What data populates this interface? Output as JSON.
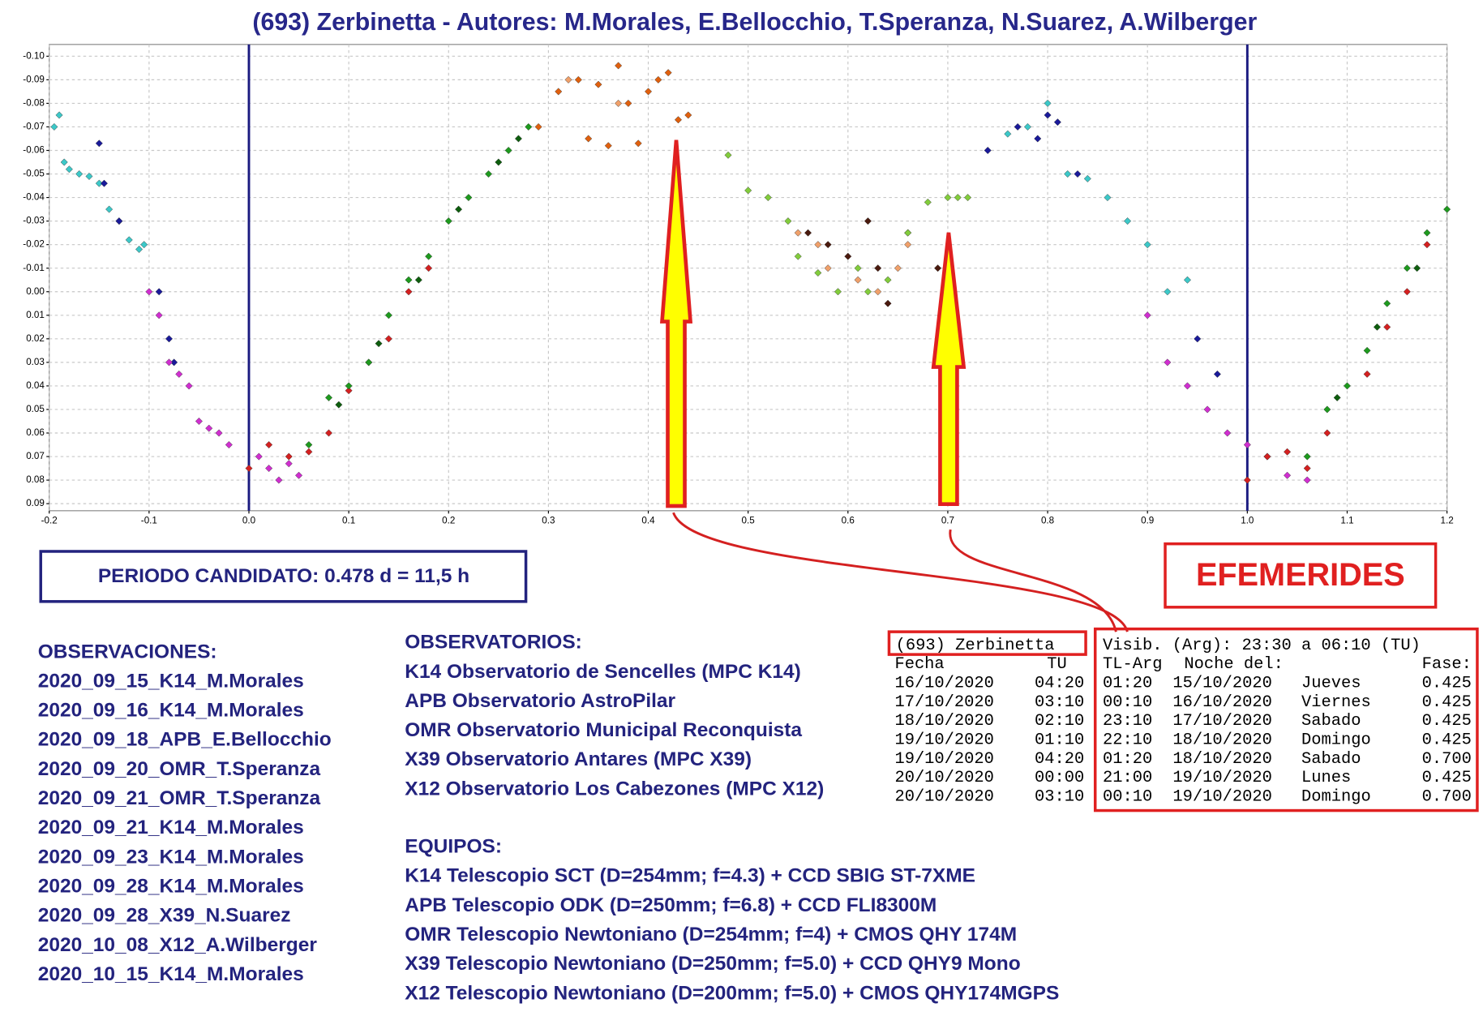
{
  "chart_data": {
    "type": "scatter",
    "title": "(693) Zerbinetta - Autores: M.Morales, E.Bellocchio, T.Speranza, N.Suarez, A.Wilberger",
    "xlim": [
      -0.2,
      1.2
    ],
    "ylim": [
      -0.105,
      0.093
    ],
    "y_inverted": true,
    "grid": true,
    "xticks": [
      -0.2,
      -0.1,
      {
        "value": 0,
        "label": "0.0"
      },
      0.1,
      0.2,
      0.3,
      0.4,
      0.5,
      0.6,
      0.7,
      0.8,
      0.9,
      {
        "value": 1,
        "label": "1.0"
      },
      1.1,
      1.2
    ],
    "yticks": [
      {
        "value": -0.1,
        "label": "-0.10"
      },
      -0.09,
      -0.08,
      -0.07,
      -0.06,
      -0.05,
      -0.04,
      -0.03,
      -0.02,
      -0.01,
      {
        "value": 0,
        "label": "0.00"
      },
      0.01,
      0.02,
      0.03,
      0.04,
      0.05,
      0.06,
      0.07,
      0.08,
      0.09
    ],
    "vlines": {
      "color": "#1a1a80",
      "values": [
        0,
        1
      ]
    },
    "series": [
      {
        "color": "#3cc8c8",
        "x": [
          -0.195,
          -0.19,
          -0.185,
          -0.18,
          -0.17,
          -0.16,
          -0.15,
          -0.14,
          -0.13,
          -0.12,
          -0.11,
          -0.105,
          0.76,
          0.78,
          0.8,
          0.82,
          0.84,
          0.86,
          0.88,
          0.9,
          0.92,
          0.94
        ],
        "values": [
          -0.07,
          -0.075,
          -0.055,
          -0.052,
          -0.05,
          -0.049,
          -0.046,
          -0.035,
          -0.03,
          -0.022,
          -0.018,
          -0.02,
          -0.067,
          -0.07,
          -0.08,
          -0.05,
          -0.048,
          -0.04,
          -0.03,
          -0.02,
          0.0,
          -0.005
        ]
      },
      {
        "color": "#1a1a9a",
        "x": [
          -0.15,
          -0.145,
          -0.13,
          -0.09,
          -0.08,
          -0.075,
          0.74,
          0.77,
          0.79,
          0.8,
          0.81,
          0.83,
          0.95,
          0.97
        ],
        "values": [
          -0.063,
          -0.046,
          -0.03,
          0.0,
          0.02,
          0.03,
          -0.06,
          -0.07,
          -0.065,
          -0.075,
          -0.072,
          -0.05,
          0.02,
          0.035
        ]
      },
      {
        "color": "#d02ed0",
        "x": [
          -0.1,
          -0.09,
          -0.08,
          -0.07,
          -0.06,
          -0.05,
          -0.04,
          -0.03,
          -0.02,
          0.01,
          0.02,
          0.03,
          0.04,
          0.05,
          0.9,
          0.92,
          0.94,
          0.96,
          0.98,
          1.0,
          1.02,
          1.04,
          1.06
        ],
        "values": [
          0.0,
          0.01,
          0.03,
          0.035,
          0.04,
          0.055,
          0.058,
          0.06,
          0.065,
          0.07,
          0.075,
          0.08,
          0.073,
          0.078,
          0.01,
          0.03,
          0.04,
          0.05,
          0.06,
          0.065,
          0.07,
          0.078,
          0.08
        ]
      },
      {
        "color": "#d42020",
        "x": [
          0.0,
          0.02,
          0.04,
          0.06,
          0.08,
          0.1,
          0.12,
          0.14,
          0.16,
          0.18,
          1.0,
          1.02,
          1.04,
          1.06,
          1.08,
          1.12,
          1.14,
          1.16,
          1.18
        ],
        "values": [
          0.075,
          0.065,
          0.07,
          0.068,
          0.06,
          0.042,
          0.03,
          0.02,
          0.0,
          -0.01,
          0.08,
          0.07,
          0.068,
          0.075,
          0.06,
          0.035,
          0.015,
          0.0,
          -0.02
        ]
      },
      {
        "color": "#1e9a1e",
        "x": [
          0.06,
          0.08,
          0.1,
          0.12,
          0.14,
          0.16,
          0.18,
          0.2,
          0.22,
          0.24,
          0.26,
          0.28,
          1.06,
          1.08,
          1.1,
          1.12,
          1.14,
          1.16,
          1.18,
          1.2
        ],
        "values": [
          0.065,
          0.045,
          0.04,
          0.03,
          0.01,
          -0.005,
          -0.015,
          -0.03,
          -0.04,
          -0.05,
          -0.06,
          -0.07,
          0.07,
          0.05,
          0.04,
          0.025,
          0.005,
          -0.01,
          -0.025,
          -0.035
        ]
      },
      {
        "color": "#0e5e0e",
        "x": [
          0.09,
          0.13,
          0.17,
          0.21,
          0.25,
          0.27,
          1.09,
          1.13,
          1.17
        ],
        "values": [
          0.048,
          0.022,
          -0.005,
          -0.035,
          -0.055,
          -0.065,
          0.045,
          0.015,
          -0.01
        ]
      },
      {
        "color": "#e0600e",
        "x": [
          0.29,
          0.31,
          0.33,
          0.35,
          0.37,
          0.38,
          0.4,
          0.41,
          0.42,
          0.43,
          0.44,
          0.34,
          0.36,
          0.39
        ],
        "values": [
          -0.07,
          -0.085,
          -0.09,
          -0.088,
          -0.096,
          -0.08,
          -0.085,
          -0.09,
          -0.093,
          -0.073,
          -0.075,
          -0.065,
          -0.062,
          -0.063
        ]
      },
      {
        "color": "#f0a06a",
        "x": [
          0.32,
          0.37,
          0.55,
          0.57,
          0.58,
          0.61,
          0.63,
          0.65,
          0.66
        ],
        "values": [
          -0.09,
          -0.08,
          -0.025,
          -0.02,
          -0.01,
          -0.005,
          0.0,
          -0.01,
          -0.02
        ]
      },
      {
        "color": "#4a1a0e",
        "x": [
          0.56,
          0.58,
          0.6,
          0.62,
          0.63,
          0.64,
          0.66,
          0.69
        ],
        "values": [
          -0.025,
          -0.02,
          -0.015,
          -0.03,
          -0.01,
          0.005,
          -0.025,
          -0.01
        ]
      },
      {
        "color": "#82cc3c",
        "x": [
          0.48,
          0.5,
          0.52,
          0.54,
          0.55,
          0.57,
          0.59,
          0.61,
          0.62,
          0.64,
          0.66,
          0.68,
          0.7,
          0.71,
          0.72
        ],
        "values": [
          -0.058,
          -0.043,
          -0.04,
          -0.03,
          -0.015,
          -0.008,
          0.0,
          -0.01,
          0.0,
          -0.005,
          -0.025,
          -0.038,
          -0.04,
          -0.04,
          -0.04
        ]
      }
    ]
  },
  "period": "PERIODO CANDIDATO: 0.478 d = 11,5 h",
  "efemerides_label": "EFEMERIDES",
  "observaciones": {
    "title": "OBSERVACIONES:",
    "items": [
      "2020_09_15_K14_M.Morales",
      "2020_09_16_K14_M.Morales",
      "2020_09_18_APB_E.Bellocchio",
      "2020_09_20_OMR_T.Speranza",
      "2020_09_21_OMR_T.Speranza",
      "2020_09_21_K14_M.Morales",
      "2020_09_23_K14_M.Morales",
      "2020_09_28_K14_M.Morales",
      "2020_09_28_X39_N.Suarez",
      "2020_10_08_X12_A.Wilberger",
      "2020_10_15_K14_M.Morales"
    ]
  },
  "observatorios": {
    "title": "OBSERVATORIOS:",
    "items": [
      "K14 Observatorio de Sencelles (MPC K14)",
      "APB Observatorio AstroPilar",
      "OMR Observatorio Municipal Reconquista",
      "X39 Observatorio Antares (MPC X39)",
      "X12 Observatorio Los Cabezones (MPC X12)"
    ]
  },
  "equipos": {
    "title": "EQUIPOS:",
    "items": [
      "K14 Telescopio SCT (D=254mm; f=4.3) + CCD SBIG ST-7XME",
      "APB Telescopio ODK (D=250mm; f=6.8) + CCD FLI8300M",
      "OMR Telescopio Newtoniano (D=254mm; f=4) + CMOS QHY 174M",
      "X39 Telescopio Newtoniano (D=250mm; f=5.0) + CCD QHY9 Mono",
      "X12 Telescopio Newtoniano (D=200mm; f=5.0) + CMOS QHY174MGPS"
    ]
  },
  "ephemeris": {
    "object": "(693) Zerbinetta",
    "fecha_header": "Fecha",
    "tu_header": "TU",
    "visib": "Visib. (Arg): 23:30 a 06:10 (TU)",
    "tl_header": "TL-Arg",
    "noche_header": "Noche del:",
    "fase_header": "Fase:",
    "rows": [
      [
        "16/10/2020",
        "04:20",
        "01:20",
        "15/10/2020",
        "Jueves",
        "0.425"
      ],
      [
        "17/10/2020",
        "03:10",
        "00:10",
        "16/10/2020",
        "Viernes",
        "0.425"
      ],
      [
        "18/10/2020",
        "02:10",
        "23:10",
        "17/10/2020",
        "Sabado",
        "0.425"
      ],
      [
        "19/10/2020",
        "01:10",
        "22:10",
        "18/10/2020",
        "Domingo",
        "0.425"
      ],
      [
        "19/10/2020",
        "04:20",
        "01:20",
        "18/10/2020",
        "Sabado",
        "0.700"
      ],
      [
        "20/10/2020",
        "00:00",
        "21:00",
        "19/10/2020",
        "Lunes",
        "0.425"
      ],
      [
        "20/10/2020",
        "03:10",
        "00:10",
        "19/10/2020",
        "Domingo",
        "0.700"
      ]
    ]
  }
}
